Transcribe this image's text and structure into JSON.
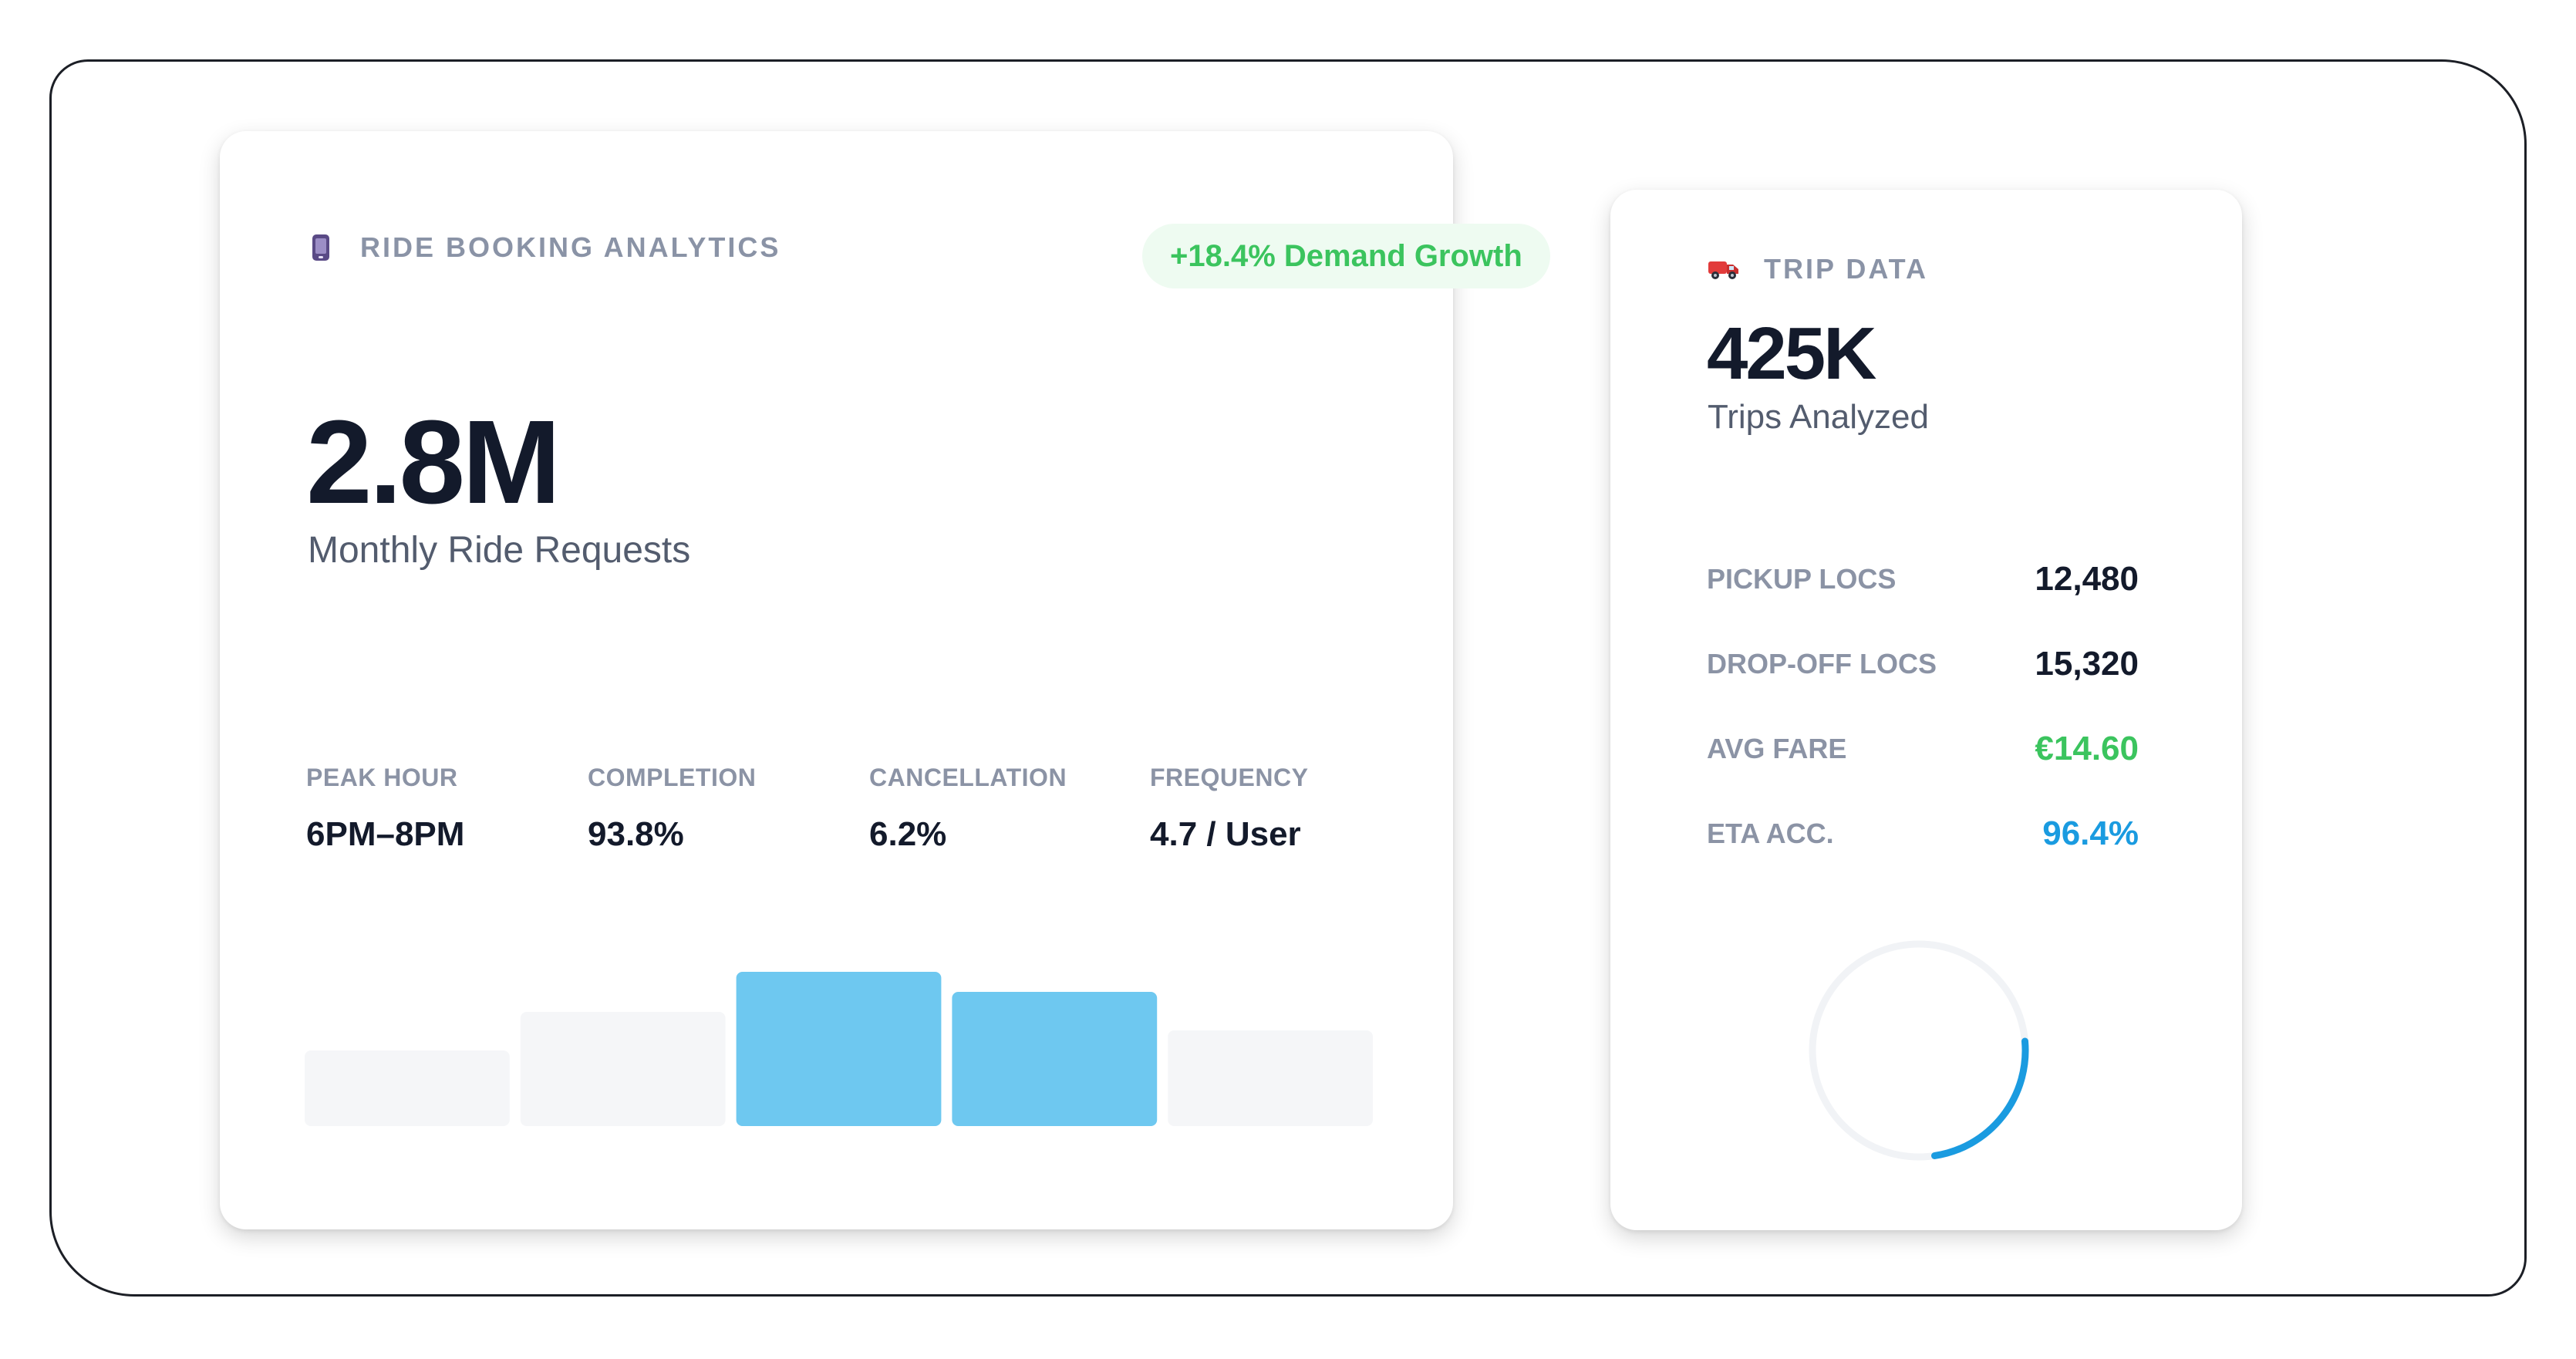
{
  "left_card": {
    "eyebrow": "RIDE BOOKING ANALYTICS",
    "eyebrow_icon": "phone-icon",
    "badge": "+18.4% Demand Growth",
    "headline_value": "2.8M",
    "headline_label": "Monthly Ride Requests",
    "stats": [
      {
        "label": "PEAK HOUR",
        "value": "6PM–8PM"
      },
      {
        "label": "COMPLETION",
        "value": "93.8%"
      },
      {
        "label": "CANCELLATION",
        "value": "6.2%"
      },
      {
        "label": "FREQUENCY",
        "value": "4.7 / User"
      }
    ],
    "chart_data": {
      "type": "bar",
      "values": [
        0.49,
        0.74,
        1.0,
        0.87,
        0.62
      ],
      "highlighted": [
        false,
        false,
        true,
        true,
        false
      ]
    }
  },
  "right_card": {
    "eyebrow": "TRIP DATA",
    "eyebrow_icon": "truck-icon",
    "headline_value": "425K",
    "headline_label": "Trips Analyzed",
    "rows": [
      {
        "label": "PICKUP LOCS",
        "value": "12,480"
      },
      {
        "label": "DROP-OFF LOCS",
        "value": "15,320"
      },
      {
        "label": "AVG FARE",
        "value": "€14.60"
      },
      {
        "label": "ETA ACC.",
        "value": "96.4%"
      }
    ],
    "ring_progress": 0.24
  },
  "colors": {
    "accent_blue": "#6ec8f0",
    "ring_blue": "#1a9be0",
    "green": "#3bc45e",
    "muted_bar": "#f5f6f8",
    "text_dark": "#131a2b",
    "text_muted": "#8b93a5"
  }
}
